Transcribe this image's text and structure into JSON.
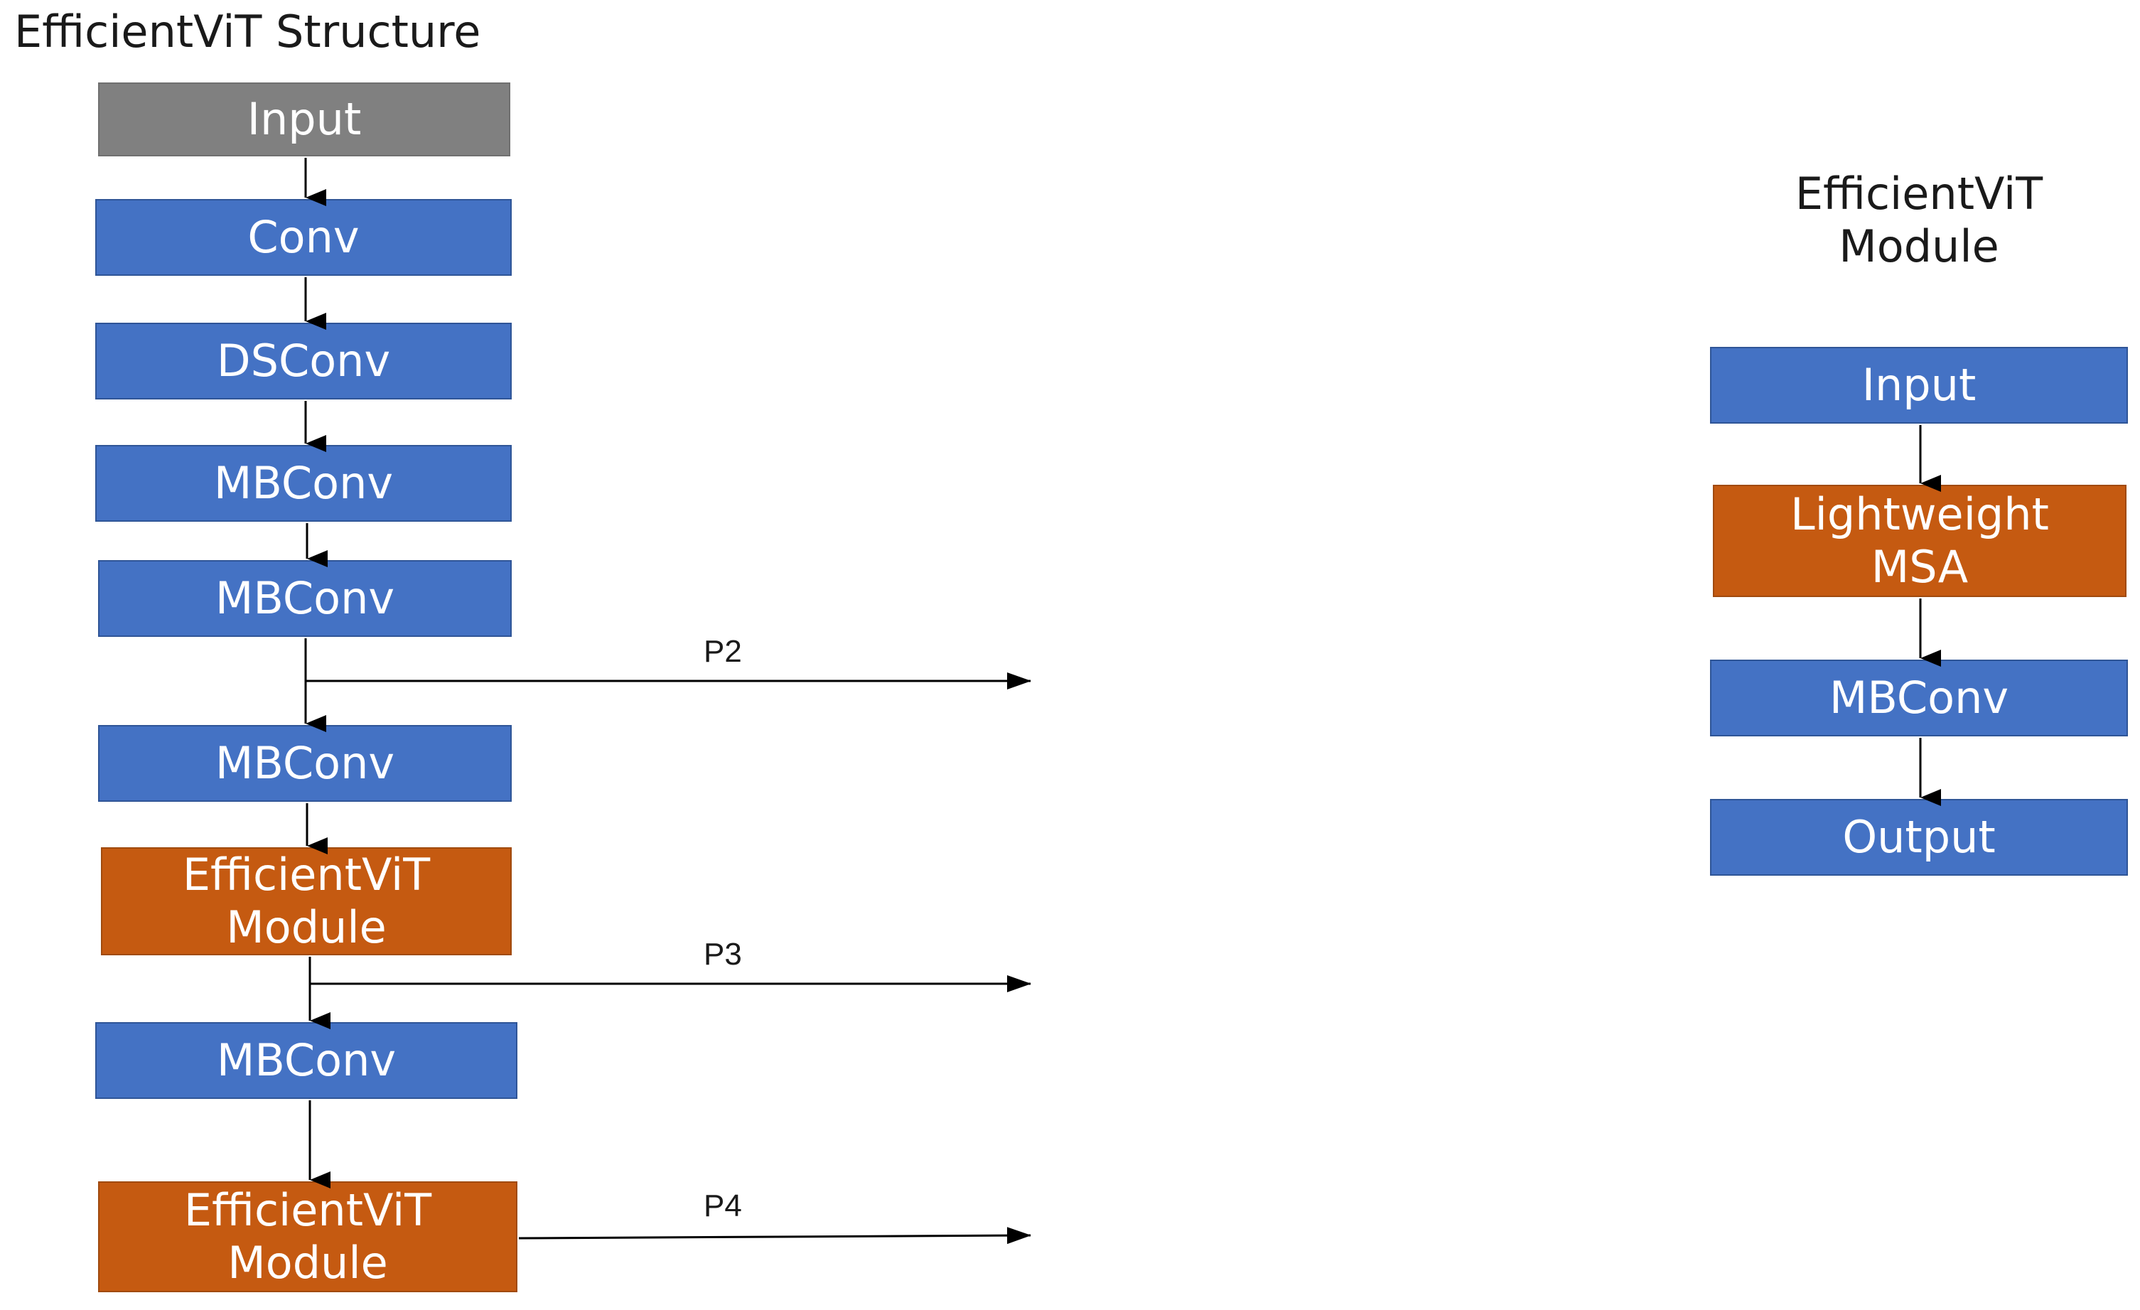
{
  "titles": {
    "structure": "EfficientViT Structure",
    "module_line1": "EfficientViT",
    "module_line2": "Module"
  },
  "structure_blocks": [
    {
      "line1": "Input",
      "line2": "",
      "kind": "gray"
    },
    {
      "line1": "Conv",
      "line2": "",
      "kind": "blue"
    },
    {
      "line1": "DSConv",
      "line2": "",
      "kind": "blue"
    },
    {
      "line1": "MBConv",
      "line2": "",
      "kind": "blue"
    },
    {
      "line1": "MBConv",
      "line2": "",
      "kind": "blue"
    },
    {
      "line1": "MBConv",
      "line2": "",
      "kind": "blue"
    },
    {
      "line1": "EfficientViT",
      "line2": "Module",
      "kind": "orange"
    },
    {
      "line1": "MBConv",
      "line2": "",
      "kind": "blue"
    },
    {
      "line1": "EfficientViT",
      "line2": "Module",
      "kind": "orange"
    }
  ],
  "module_blocks": [
    {
      "line1": "Input",
      "line2": "",
      "kind": "blue"
    },
    {
      "line1": "Lightweight",
      "line2": "MSA",
      "kind": "orange"
    },
    {
      "line1": "MBConv",
      "line2": "",
      "kind": "blue"
    },
    {
      "line1": "Output",
      "line2": "",
      "kind": "blue"
    }
  ],
  "outputs": [
    "P2",
    "P3",
    "P4"
  ],
  "colors": {
    "blue": "#4472c4",
    "orange": "#c55a11",
    "gray": "#808080",
    "line": "#000000"
  }
}
